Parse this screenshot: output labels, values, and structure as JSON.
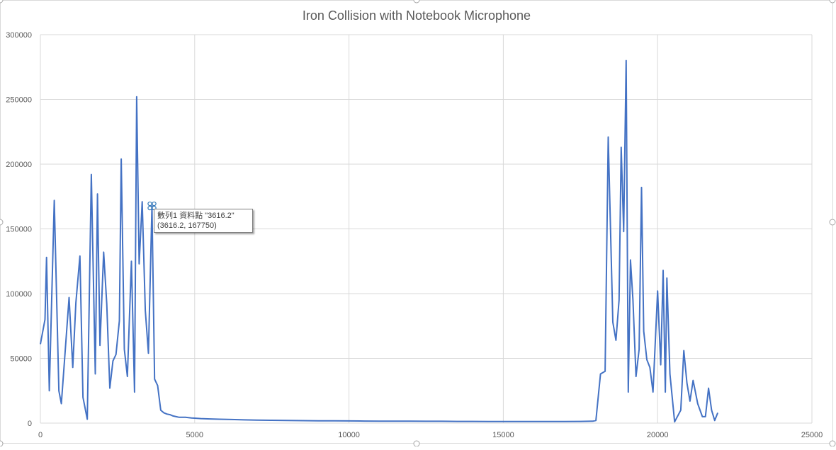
{
  "chart_data": {
    "type": "line",
    "title": "Iron Collision with Notebook Microphone",
    "xlabel": "",
    "ylabel": "",
    "xlim": [
      0,
      25000
    ],
    "ylim": [
      0,
      300000
    ],
    "x_ticks": [
      "0",
      "5000",
      "10000",
      "15000",
      "20000",
      "25000"
    ],
    "y_ticks": [
      "0",
      "50000",
      "100000",
      "150000",
      "200000",
      "250000",
      "300000"
    ],
    "grid": true,
    "legend": "none",
    "line_color": "#4472c4",
    "series": [
      {
        "x": [
          0,
          150,
          200,
          290,
          450,
          600,
          680,
          780,
          930,
          1050,
          1150,
          1280,
          1380,
          1520,
          1650,
          1780,
          1850,
          1930,
          2050,
          2150,
          2250,
          2350,
          2450,
          2560,
          2620,
          2720,
          2820,
          2950,
          3050,
          3120,
          3200,
          3300,
          3400,
          3500,
          3616.2,
          3700,
          3800,
          3900,
          4000,
          4100,
          4200,
          4300,
          4400,
          4500,
          4700,
          4900,
          5000,
          5200,
          5500,
          5800,
          6200,
          6600,
          7000,
          7500,
          8000,
          8500,
          9000,
          9500,
          10000,
          10500,
          11000,
          11500,
          12000,
          12500,
          13000,
          13500,
          14000,
          14500,
          15000,
          15500,
          16000,
          16500,
          17000,
          17500,
          17900,
          18000,
          18150,
          18300,
          18400,
          18550,
          18650,
          18750,
          18820,
          18900,
          18980,
          19050,
          19120,
          19200,
          19300,
          19400,
          19480,
          19550,
          19650,
          19750,
          19850,
          20000,
          20100,
          20180,
          20250,
          20300,
          20400,
          20550,
          20750,
          20850,
          20950,
          21050,
          21150,
          21300,
          21450,
          21550,
          21650,
          21750,
          21850,
          21950
        ],
        "y": [
          61000,
          80000,
          128000,
          25000,
          172000,
          25000,
          15000,
          48000,
          97000,
          43000,
          93000,
          129000,
          20000,
          3000,
          192000,
          38000,
          177000,
          60000,
          132000,
          92000,
          27000,
          48000,
          53000,
          79000,
          204000,
          57000,
          36000,
          125000,
          24000,
          252000,
          123000,
          171000,
          87000,
          54000,
          167750,
          34000,
          29000,
          10000,
          8000,
          7000,
          6500,
          5500,
          5000,
          4500,
          4500,
          4000,
          3800,
          3500,
          3200,
          3000,
          2800,
          2500,
          2300,
          2200,
          2000,
          1900,
          1800,
          1800,
          1700,
          1600,
          1500,
          1500,
          1500,
          1400,
          1400,
          1300,
          1300,
          1200,
          1200,
          1200,
          1200,
          1200,
          1200,
          1300,
          1500,
          2000,
          38000,
          40000,
          221000,
          78000,
          64000,
          95000,
          213000,
          148000,
          280000,
          24000,
          126000,
          95000,
          36000,
          57000,
          182000,
          71000,
          49000,
          43000,
          24000,
          102000,
          45000,
          118000,
          24000,
          112000,
          38000,
          1000,
          10000,
          56000,
          31000,
          17000,
          33000,
          15000,
          5000,
          5000,
          27000,
          10000,
          2000,
          8000
        ]
      }
    ],
    "tooltip": {
      "line1": "數列1 資料點 \"3616.2\"",
      "line2": "(3616.2, 167750)",
      "x": 3616.2,
      "y": 167750
    }
  }
}
